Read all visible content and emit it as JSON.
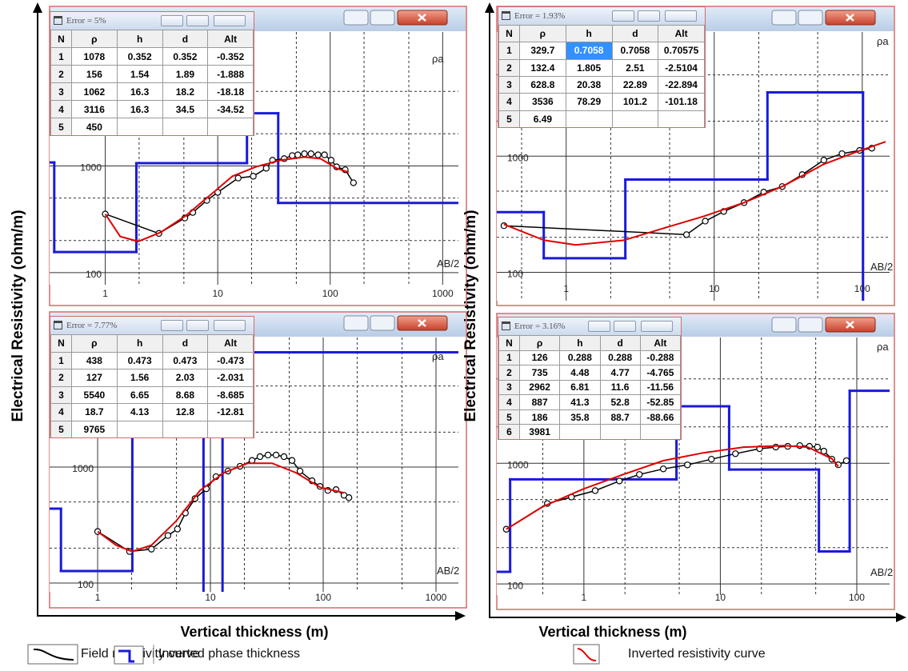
{
  "y_axis_label": "Electrical Resistivity (ohm/m)",
  "x_axis_label": "Vertical thickness (m)",
  "chart_data": [
    {
      "type": "line",
      "log_x": true,
      "log_y": true,
      "grid": true,
      "xlim": [
        0.32,
        1380
      ],
      "ylim": [
        77,
        18000
      ],
      "xticks": [
        1,
        10,
        100,
        1000
      ],
      "yticks": [
        100,
        1000
      ],
      "xgrid_minor": [
        2,
        5,
        20,
        50,
        200,
        500
      ],
      "ygrid_minor": [
        200,
        500,
        2000,
        5000
      ],
      "corner_labels": {
        "top": "ρa",
        "bottom": "AB/2"
      },
      "series": [
        {
          "name": "Field resistivity curve",
          "color": "#000000",
          "markers": true,
          "x": [
            1,
            3.0,
            5.1,
            6.0,
            8.0,
            10,
            15.2,
            20.7,
            27,
            30.7,
            39,
            46,
            51.5,
            59,
            67.5,
            78,
            89,
            102,
            114,
            136,
            161
          ],
          "values": [
            354,
            233,
            325,
            366,
            475,
            565,
            770,
            800,
            950,
            1130,
            1170,
            1250,
            1270,
            1300,
            1300,
            1270,
            1270,
            1130,
            980,
            920,
            695
          ]
        },
        {
          "name": "Inverted resistivity curve",
          "color": "#e00000",
          "x": [
            1,
            1.36,
            1.96,
            3.1,
            5.1,
            8.3,
            13.5,
            22,
            36,
            59,
            82,
            114,
            146
          ],
          "values": [
            354,
            218,
            196,
            238,
            336,
            518,
            800,
            983,
            1130,
            1210,
            1170,
            950,
            870
          ]
        }
      ],
      "layers": {
        "name": "Inverted phase thickness",
        "color": "#1a1adb",
        "rho": [
          1078,
          156,
          1062,
          3116,
          450
        ],
        "depth": [
          0.352,
          1.89,
          18.2,
          34.5
        ]
      },
      "table": {
        "title": "Error = 5%",
        "header": [
          "N",
          "ρ",
          "h",
          "d",
          "Alt"
        ],
        "rows": [
          [
            "1",
            "1078",
            "0.352",
            "0.352",
            "-0.352"
          ],
          [
            "2",
            "156",
            "1.54",
            "1.89",
            "-1.888"
          ],
          [
            "3",
            "1062",
            "16.3",
            "18.2",
            "-18.18"
          ],
          [
            "4",
            "3116",
            "16.3",
            "34.5",
            "-34.52"
          ],
          [
            "5",
            "450"
          ]
        ]
      }
    },
    {
      "type": "line",
      "log_x": true,
      "log_y": true,
      "grid": true,
      "xlim": [
        0.34,
        153
      ],
      "ylim": [
        57,
        11700
      ],
      "xticks": [
        1,
        10,
        100
      ],
      "yticks": [
        100,
        1000
      ],
      "xgrid_minor": [
        0.5,
        2,
        5,
        20,
        50
      ],
      "ygrid_minor": [
        200,
        500,
        2000,
        5000
      ],
      "corner_labels": {
        "top": "ρa",
        "bottom": "AB/2"
      },
      "series": [
        {
          "name": "Field resistivity curve",
          "color": "#000000",
          "markers": true,
          "x": [
            0.38,
            6.5,
            8.7,
            11.6,
            15.9,
            21.6,
            28.8,
            39.3,
            55,
            73,
            96,
            116
          ],
          "values": [
            252,
            211,
            276,
            334,
            398,
            490,
            547,
            693,
            924,
            1050,
            1120,
            1170
          ]
        },
        {
          "name": "Inverted resistivity curve",
          "color": "#e00000",
          "x": [
            0.38,
            0.71,
            1.16,
            2.45,
            4.56,
            8.5,
            15.9,
            29.5,
            55,
            90.5,
            144
          ],
          "values": [
            259,
            189,
            172,
            189,
            240,
            304,
            398,
            556,
            853,
            1083,
            1330
          ]
        }
      ],
      "layers": {
        "name": "Inverted phase thickness",
        "color": "#1a1adb",
        "rho": [
          329.7,
          132.4,
          628.8,
          3536,
          6.49
        ],
        "depth": [
          0.7058,
          2.51,
          22.89,
          101.2
        ]
      },
      "table": {
        "title": "Error = 1.93%",
        "header": [
          "N",
          "ρ",
          "h",
          "d",
          "Alt"
        ],
        "rows": [
          [
            "1",
            "329.7",
            "0.7058",
            "0.7058",
            "0.70575"
          ],
          [
            "2",
            "132.4",
            "1.805",
            "2.51",
            "-2.5104"
          ],
          [
            "3",
            "628.8",
            "20.38",
            "22.89",
            "-22.894"
          ],
          [
            "4",
            "3536",
            "78.29",
            "101.2",
            "-101.18"
          ],
          [
            "5",
            "6.49"
          ]
        ]
      }
    },
    {
      "type": "line",
      "log_x": true,
      "log_y": true,
      "grid": true,
      "xlim": [
        0.375,
        1580
      ],
      "ylim": [
        84,
        13100
      ],
      "xticks": [
        1,
        10,
        100,
        1000
      ],
      "yticks": [
        100,
        1000
      ],
      "xgrid_minor": [
        2,
        5,
        20,
        50,
        200,
        500
      ],
      "ygrid_minor": [
        200,
        500,
        2000,
        5000
      ],
      "corner_labels": {
        "top": "ρa",
        "bottom": "AB/2"
      },
      "series": [
        {
          "name": "Field resistivity curve",
          "color": "#000000",
          "markers": true,
          "x": [
            1,
            1.92,
            3.0,
            4.2,
            5.1,
            6.0,
            7.3,
            9.2,
            11.2,
            14.3,
            18.3,
            23.4,
            27.5,
            32.4,
            38.2,
            44.9,
            52.9,
            62.3,
            79.6,
            93.7,
            110,
            130,
            153,
            169
          ],
          "values": [
            278,
            187,
            196,
            257,
            292,
            402,
            535,
            650,
            826,
            923,
            1016,
            1140,
            1230,
            1270,
            1270,
            1230,
            1140,
            923,
            762,
            681,
            629,
            639,
            571,
            545
          ]
        },
        {
          "name": "Inverted resistivity curve",
          "color": "#e00000",
          "x": [
            1,
            1.46,
            2.02,
            3.0,
            4.96,
            8.1,
            13.2,
            21.5,
            35.2,
            57.4,
            93.7,
            153
          ],
          "values": [
            278,
            212,
            187,
            212,
            342,
            629,
            894,
            1080,
            1080,
            894,
            670,
            600
          ]
        }
      ],
      "layers": {
        "name": "Inverted phase thickness",
        "color": "#1a1adb",
        "rho": [
          438,
          127,
          5540,
          18.7,
          9765
        ],
        "depth": [
          0.473,
          2.03,
          8.68,
          12.8
        ]
      },
      "table": {
        "title": "Error = 7.77%",
        "header": [
          "N",
          "ρ",
          "h",
          "d",
          "Alt"
        ],
        "rows": [
          [
            "1",
            "438",
            "0.473",
            "0.473",
            "-0.473"
          ],
          [
            "2",
            "127",
            "1.56",
            "2.03",
            "-2.031"
          ],
          [
            "3",
            "5540",
            "6.65",
            "8.68",
            "-8.685"
          ],
          [
            "4",
            "18.7",
            "4.13",
            "12.8",
            "-12.81"
          ],
          [
            "5",
            "9765"
          ]
        ]
      }
    },
    {
      "type": "line",
      "log_x": true,
      "log_y": true,
      "grid": true,
      "xlim": [
        0.23,
        174
      ],
      "ylim": [
        81,
        11000
      ],
      "xticks": [
        1,
        10,
        100
      ],
      "yticks": [
        100,
        1000
      ],
      "xgrid_minor": [
        0.5,
        2,
        5,
        20,
        50
      ],
      "ygrid_minor": [
        200,
        500,
        2000,
        5000
      ],
      "corner_labels": {
        "top": "ρa",
        "bottom": "AB/2"
      },
      "series": [
        {
          "name": "Field resistivity curve",
          "color": "#000000",
          "markers": true,
          "x": [
            0.27,
            0.54,
            0.81,
            1.21,
            1.82,
            2.55,
            3.82,
            5.74,
            8.6,
            12.9,
            19.4,
            25.5,
            31.2,
            38.2,
            45,
            51.5,
            57.4,
            65.7,
            73.2,
            83.9
          ],
          "values": [
            284,
            464,
            525,
            593,
            713,
            807,
            898,
            969,
            1080,
            1200,
            1320,
            1360,
            1380,
            1400,
            1380,
            1360,
            1260,
            1080,
            970,
            1050
          ]
        },
        {
          "name": "Inverted resistivity curve",
          "color": "#e00000",
          "x": [
            0.27,
            0.5,
            0.99,
            1.94,
            3.82,
            7.52,
            14.8,
            29.2,
            43.8,
            65.7,
            73.2
          ],
          "values": [
            284,
            437,
            612,
            807,
            1050,
            1220,
            1360,
            1400,
            1360,
            1090,
            940
          ]
        }
      ],
      "layers": {
        "name": "Inverted phase thickness",
        "color": "#1a1adb",
        "rho": [
          126,
          735,
          2962,
          887,
          186,
          3981
        ],
        "depth": [
          0.288,
          4.77,
          11.6,
          52.8,
          88.7
        ]
      },
      "table": {
        "title": "Error = 3.16%",
        "header": [
          "N",
          "ρ",
          "h",
          "d",
          "Alt"
        ],
        "rows": [
          [
            "1",
            "126",
            "0.288",
            "0.288",
            "-0.288"
          ],
          [
            "2",
            "735",
            "4.48",
            "4.77",
            "-4.765"
          ],
          [
            "3",
            "2962",
            "6.81",
            "11.6",
            "-11.56"
          ],
          [
            "4",
            "887",
            "41.3",
            "52.8",
            "-52.85"
          ],
          [
            "5",
            "186",
            "35.8",
            "88.7",
            "-88.66"
          ],
          [
            "6",
            "3981"
          ]
        ]
      }
    }
  ]
}
